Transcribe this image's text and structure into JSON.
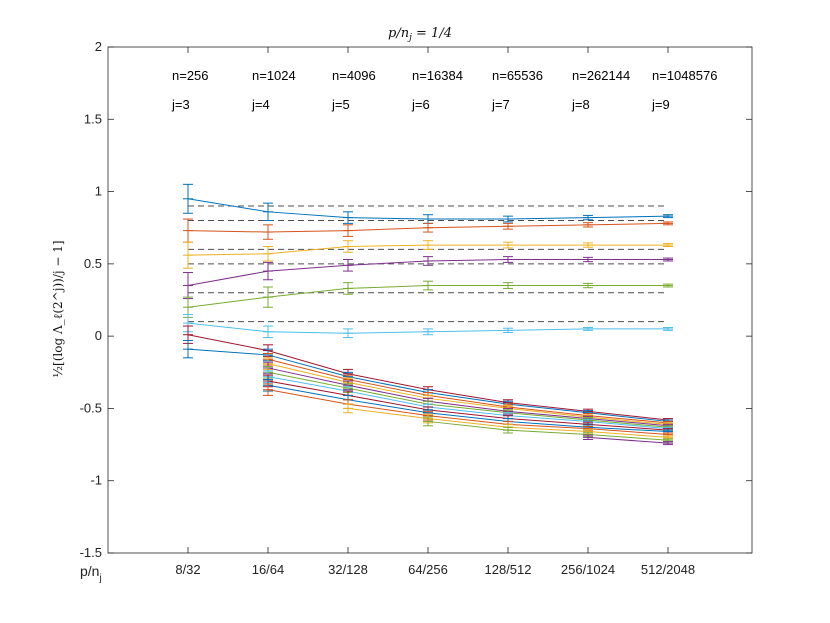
{
  "chart_data": {
    "type": "line",
    "title": "p/n_j = 1/4",
    "xlabel": "p/n_j",
    "ylabel": "½[(log Λ_ℓ(2^j))/j − 1]",
    "categories": [
      "8/32",
      "16/64",
      "32/128",
      "64/256",
      "128/512",
      "256/1024",
      "512/2048"
    ],
    "ylim": [
      -1.5,
      2
    ],
    "yticks": [
      -1.5,
      -1,
      -0.5,
      0,
      0.5,
      1,
      1.5,
      2
    ],
    "ytick_labels": [
      "-1.5",
      "-1",
      "-0.5",
      "0",
      "0.5",
      "1",
      "1.5",
      "2"
    ],
    "grid": false,
    "n_labels": [
      "n=256",
      "n=1024",
      "n=4096",
      "n=16384",
      "n=65536",
      "n=262144",
      "n=1048576"
    ],
    "j_labels": [
      "j=3",
      "j=4",
      "j=5",
      "j=6",
      "j=7",
      "j=8",
      "j=9"
    ],
    "reference_lines": [
      0.9,
      0.8,
      0.6,
      0.5,
      0.3,
      0.1
    ],
    "series": [
      {
        "color": "#0072BD",
        "values": [
          0.95,
          0.86,
          0.82,
          0.81,
          0.81,
          0.82,
          0.83
        ],
        "errors": [
          0.1,
          0.06,
          0.04,
          0.03,
          0.02,
          0.015,
          0.01
        ]
      },
      {
        "color": "#D95319",
        "values": [
          0.73,
          0.72,
          0.73,
          0.75,
          0.76,
          0.77,
          0.78
        ],
        "errors": [
          0.08,
          0.05,
          0.04,
          0.03,
          0.02,
          0.015,
          0.01
        ]
      },
      {
        "color": "#EDB120",
        "values": [
          0.56,
          0.57,
          0.62,
          0.63,
          0.63,
          0.63,
          0.63
        ],
        "errors": [
          0.09,
          0.05,
          0.04,
          0.03,
          0.02,
          0.015,
          0.01
        ]
      },
      {
        "color": "#7E2F8E",
        "values": [
          0.35,
          0.45,
          0.49,
          0.52,
          0.53,
          0.53,
          0.53
        ],
        "errors": [
          0.09,
          0.06,
          0.04,
          0.03,
          0.02,
          0.015,
          0.01
        ]
      },
      {
        "color": "#77AC30",
        "values": [
          0.2,
          0.27,
          0.33,
          0.35,
          0.35,
          0.35,
          0.35
        ],
        "errors": [
          0.07,
          0.07,
          0.04,
          0.03,
          0.02,
          0.015,
          0.01
        ]
      },
      {
        "color": "#4DBEEE",
        "values": [
          0.09,
          0.03,
          0.02,
          0.03,
          0.04,
          0.05,
          0.05
        ],
        "errors": [
          0.06,
          0.04,
          0.03,
          0.02,
          0.015,
          0.01,
          0.01
        ]
      },
      {
        "color": "#A2142F",
        "values": [
          0.01,
          -0.1,
          -0.26,
          -0.37,
          -0.46,
          -0.52,
          -0.58
        ],
        "errors": [
          0.06,
          0.04,
          0.03,
          0.02,
          0.02,
          0.015,
          0.01
        ]
      },
      {
        "color": "#0072BD",
        "values": [
          -0.09,
          -0.13,
          -0.28,
          -0.39,
          -0.47,
          -0.53,
          -0.59
        ],
        "errors": [
          0.06,
          0.04,
          0.03,
          0.02,
          0.02,
          0.015,
          0.01
        ]
      },
      {
        "color": "#D95319",
        "values": [
          null,
          -0.16,
          -0.3,
          -0.41,
          -0.49,
          -0.55,
          -0.6
        ],
        "errors": [
          0,
          0.04,
          0.03,
          0.02,
          0.02,
          0.015,
          0.01
        ]
      },
      {
        "color": "#EDB120",
        "values": [
          null,
          -0.19,
          -0.32,
          -0.43,
          -0.5,
          -0.56,
          -0.61
        ],
        "errors": [
          0,
          0.04,
          0.03,
          0.02,
          0.02,
          0.015,
          0.01
        ]
      },
      {
        "color": "#7E2F8E",
        "values": [
          null,
          -0.22,
          -0.34,
          -0.45,
          -0.52,
          -0.57,
          -0.62
        ],
        "errors": [
          0,
          0.04,
          0.03,
          0.02,
          0.02,
          0.015,
          0.01
        ]
      },
      {
        "color": "#77AC30",
        "values": [
          null,
          -0.25,
          -0.36,
          -0.47,
          -0.53,
          -0.58,
          -0.63
        ],
        "errors": [
          0,
          0.04,
          0.03,
          0.02,
          0.02,
          0.015,
          0.01
        ]
      },
      {
        "color": "#4DBEEE",
        "values": [
          null,
          -0.28,
          -0.38,
          -0.49,
          -0.55,
          -0.59,
          -0.64
        ],
        "errors": [
          0,
          0.04,
          0.03,
          0.02,
          0.02,
          0.015,
          0.01
        ]
      },
      {
        "color": "#A2142F",
        "values": [
          null,
          -0.31,
          -0.41,
          -0.51,
          -0.57,
          -0.61,
          -0.65
        ],
        "errors": [
          0,
          0.04,
          0.03,
          0.02,
          0.02,
          0.015,
          0.01
        ]
      },
      {
        "color": "#0072BD",
        "values": [
          null,
          -0.34,
          -0.44,
          -0.53,
          -0.59,
          -0.63,
          -0.66
        ],
        "errors": [
          0,
          0.04,
          0.03,
          0.02,
          0.02,
          0.015,
          0.01
        ]
      },
      {
        "color": "#D95319",
        "values": [
          null,
          -0.37,
          -0.47,
          -0.55,
          -0.61,
          -0.64,
          -0.68
        ],
        "errors": [
          0,
          0.04,
          0.03,
          0.03,
          0.02,
          0.015,
          0.01
        ]
      },
      {
        "color": "#EDB120",
        "values": [
          null,
          null,
          -0.5,
          -0.57,
          -0.63,
          -0.66,
          -0.7
        ],
        "errors": [
          0,
          0,
          0.03,
          0.03,
          0.02,
          0.015,
          0.01
        ]
      },
      {
        "color": "#77AC30",
        "values": [
          null,
          null,
          null,
          -0.59,
          -0.65,
          -0.68,
          -0.72
        ],
        "errors": [
          0,
          0,
          0,
          0.03,
          0.02,
          0.015,
          0.01
        ]
      },
      {
        "color": "#7E2F8E",
        "values": [
          null,
          null,
          null,
          null,
          null,
          -0.7,
          -0.74
        ],
        "errors": [
          0,
          0,
          0,
          0,
          0,
          0.015,
          0.01
        ]
      }
    ]
  }
}
